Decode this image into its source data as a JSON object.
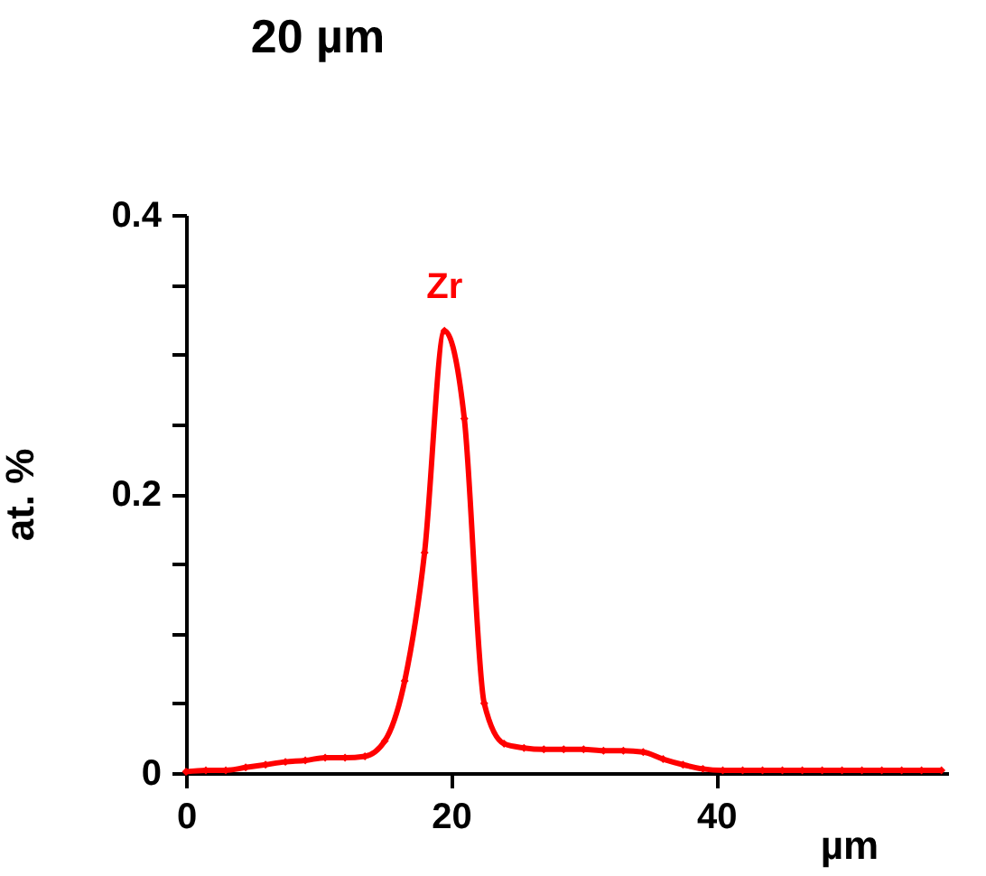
{
  "chart_data": {
    "type": "line",
    "xlabel": "µm",
    "ylabel": "at. %",
    "x": [
      0,
      1.5,
      3,
      4.5,
      6,
      7.5,
      9,
      10.5,
      12,
      13.5,
      15,
      16.5,
      18,
      19.5,
      21,
      22.5,
      24,
      25.5,
      27,
      28.5,
      30,
      31.5,
      33,
      34.5,
      36,
      37.5,
      39,
      40.5,
      42,
      43.5,
      45,
      46.5,
      48,
      49.5,
      51,
      52.5,
      54,
      55.5,
      57
    ],
    "series": [
      {
        "name": "Zr",
        "color": "#ff0000",
        "values": [
          0.001,
          0.002,
          0.002,
          0.004,
          0.006,
          0.008,
          0.009,
          0.011,
          0.011,
          0.012,
          0.023,
          0.066,
          0.158,
          0.317,
          0.254,
          0.05,
          0.021,
          0.018,
          0.017,
          0.017,
          0.017,
          0.016,
          0.016,
          0.015,
          0.01,
          0.006,
          0.003,
          0.002,
          0.002,
          0.002,
          0.002,
          0.002,
          0.002,
          0.002,
          0.002,
          0.002,
          0.002,
          0.002,
          0.002
        ]
      }
    ],
    "xlim": [
      0,
      57.5
    ],
    "xticks": [
      0,
      20,
      40
    ],
    "ylim": [
      0,
      0.4
    ],
    "yticks": [
      0,
      {
        "value": 0.05,
        "label": null
      },
      {
        "value": 0.1,
        "label": null
      },
      {
        "value": 0.15,
        "label": null
      },
      {
        "value": 0.2,
        "label": "0.2"
      },
      {
        "value": 0.25,
        "label": null
      },
      {
        "value": 0.3,
        "label": null
      },
      {
        "value": 0.35,
        "label": null
      },
      {
        "value": 0.4,
        "label": "0.4"
      }
    ],
    "marker": "diamond",
    "line_style": "solid",
    "grid": false,
    "annotations": [
      "20 µm"
    ]
  }
}
